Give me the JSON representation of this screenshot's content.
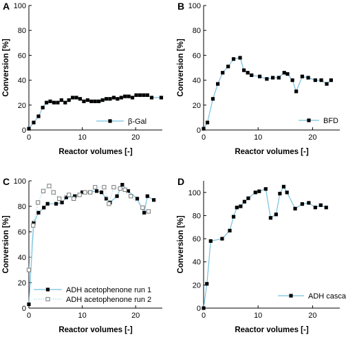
{
  "chart_data": [
    {
      "panel": "A",
      "type": "line",
      "xlabel": "Reactor volumes [-]",
      "ylabel": "Conversion [%]",
      "xlim": [
        0,
        25
      ],
      "ylim": [
        0,
        100
      ],
      "xticks": [
        0,
        10,
        20
      ],
      "yticks": [
        0,
        20,
        40,
        60,
        80,
        100
      ],
      "grid": false,
      "legend_position": "bottom-right",
      "series": [
        {
          "name": "β-Gal",
          "marker": "filled-square",
          "line_color": "#76c1e0",
          "x": [
            0,
            0.9,
            1.8,
            2.6,
            3.3,
            4.0,
            4.7,
            5.4,
            6.1,
            6.8,
            7.5,
            8.2,
            8.9,
            9.6,
            10.3,
            11.0,
            11.7,
            12.4,
            13.1,
            13.8,
            14.5,
            15.2,
            15.9,
            16.6,
            17.3,
            18.0,
            18.7,
            19.4,
            20.1,
            20.8,
            21.5,
            22.2,
            23.0,
            24.8
          ],
          "y": [
            1,
            6,
            11,
            18,
            22,
            23,
            22,
            22,
            24,
            22,
            24,
            26,
            26,
            25,
            23,
            24,
            23,
            23,
            23,
            24,
            25,
            25,
            26,
            25,
            26,
            27,
            27,
            26,
            28,
            28,
            28,
            28,
            26,
            26
          ]
        }
      ]
    },
    {
      "panel": "B",
      "type": "line",
      "xlabel": "Reactor volumes [-]",
      "ylabel": "Conversion [%]",
      "xlim": [
        0,
        25
      ],
      "ylim": [
        0,
        100
      ],
      "xticks": [
        0,
        10,
        20
      ],
      "yticks": [
        0,
        20,
        40,
        60,
        80,
        100
      ],
      "grid": false,
      "legend_position": "bottom-right",
      "series": [
        {
          "name": "BFD",
          "marker": "filled-square",
          "line_color": "#76c1e0",
          "x": [
            0,
            0.7,
            1.7,
            2.6,
            3.5,
            4.5,
            5.5,
            6.7,
            7.4,
            8.1,
            8.8,
            10.3,
            11.6,
            12.7,
            13.8,
            14.8,
            15.4,
            16.3,
            17.0,
            18.1,
            19.2,
            20.5,
            21.6,
            22.6,
            23.4
          ],
          "y": [
            1,
            6,
            25,
            37,
            46,
            51,
            57,
            58,
            48,
            46,
            44,
            43,
            41,
            42,
            42,
            46,
            45,
            40,
            31,
            43,
            42,
            40,
            40,
            37,
            40
          ]
        }
      ]
    },
    {
      "panel": "C",
      "type": "line",
      "xlabel": "Reactor volumes [-]",
      "ylabel": "Conversion [%]",
      "xlim": [
        0,
        25
      ],
      "ylim": [
        0,
        100
      ],
      "xticks": [
        0,
        10,
        20
      ],
      "yticks": [
        0,
        20,
        40,
        60,
        80,
        100
      ],
      "grid": false,
      "legend_position": "bottom-left",
      "series": [
        {
          "name": "ADH acetophenone run 1",
          "marker": "filled-square",
          "line_color": "#76c1e0",
          "line_style": "solid",
          "x": [
            0,
            0.9,
            1.8,
            2.8,
            3.5,
            5.1,
            6.2,
            7.0,
            8.6,
            10.0,
            11.4,
            12.7,
            13.6,
            14.5,
            15.2,
            16.5,
            17.5,
            18.6,
            20.3,
            21.6,
            22.2,
            23.4
          ],
          "y": [
            3,
            67,
            75,
            79,
            82,
            82,
            83,
            87,
            88,
            91,
            91,
            92,
            91,
            86,
            83,
            88,
            97,
            92,
            86,
            75,
            88,
            85
          ]
        },
        {
          "name": "ADH acetophenone run 2",
          "marker": "open-square",
          "line_color": "#a8d8ec",
          "line_style": "dotted",
          "x": [
            0,
            0.8,
            1.7,
            2.7,
            3.8,
            4.6,
            5.7,
            7.5,
            8.4,
            9.5,
            10.5,
            11.5,
            12.4,
            14.1,
            15.0,
            15.9,
            17.1,
            18.0,
            19.1,
            21.3,
            22.4
          ],
          "y": [
            30,
            65,
            83,
            92,
            96,
            91,
            86,
            89,
            86,
            89,
            91,
            91,
            95,
            95,
            82,
            95,
            94,
            93,
            88,
            79,
            76
          ]
        }
      ]
    },
    {
      "panel": "D",
      "type": "line",
      "xlabel": "Reactor volumes [-]",
      "ylabel": "Conversion [%]",
      "xlim": [
        0,
        25
      ],
      "ylim": [
        0,
        110
      ],
      "xticks": [
        0,
        10,
        20
      ],
      "yticks": [
        0,
        20,
        40,
        60,
        80,
        100
      ],
      "grid": false,
      "legend_position": "bottom-right",
      "series": [
        {
          "name": "ADH cascade",
          "marker": "filled-square",
          "line_color": "#76c1e0",
          "x": [
            0,
            0.6,
            1.3,
            3.4,
            4.8,
            5.5,
            6.1,
            6.8,
            7.5,
            8.2,
            9.5,
            10.2,
            11.4,
            12.3,
            13.3,
            14.0,
            14.7,
            15.3,
            16.8,
            18.1,
            19.3,
            20.5,
            21.5,
            22.5
          ],
          "y": [
            0,
            21,
            58,
            60,
            67,
            79,
            87,
            88,
            92,
            95,
            100,
            101,
            103,
            78,
            81,
            99,
            105,
            100,
            86,
            90,
            91,
            87,
            89,
            87
          ]
        }
      ]
    }
  ]
}
